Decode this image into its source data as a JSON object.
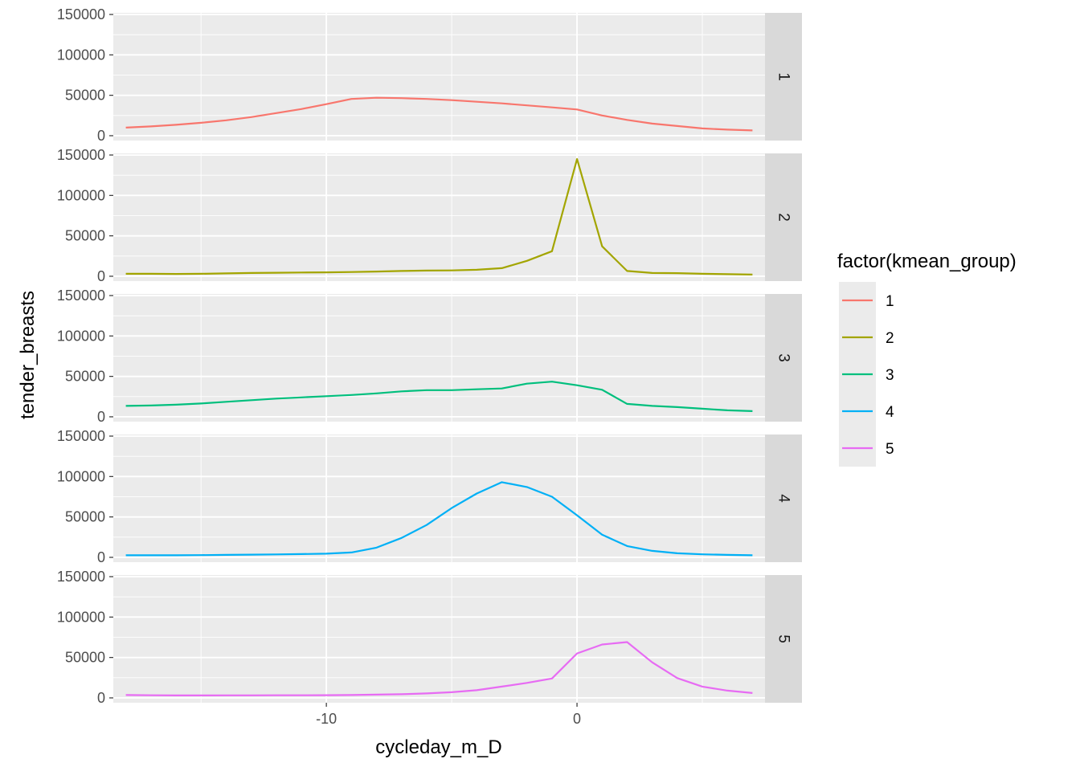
{
  "chart_data": {
    "type": "line",
    "facet": "rows",
    "xlabel": "cycleday_m_D",
    "ylabel": "tender_breasts",
    "xlim": [
      -18.5,
      7.5
    ],
    "ylim": [
      -6000,
      152000
    ],
    "x_ticks": [
      -10,
      0
    ],
    "x_tick_labels": [
      "-10",
      "0"
    ],
    "y_ticks": [
      0,
      50000,
      100000,
      150000
    ],
    "y_tick_labels": [
      "0",
      "50000",
      "100000",
      "150000"
    ],
    "grid": true,
    "legend": {
      "title": "factor(kmean_group)",
      "position": "right"
    },
    "x": [
      -18,
      -17,
      -16,
      -15,
      -14,
      -13,
      -12,
      -11,
      -10,
      -9,
      -8,
      -7,
      -6,
      -5,
      -4,
      -3,
      -2,
      -1,
      0,
      1,
      2,
      3,
      4,
      5,
      6,
      7
    ],
    "series": [
      {
        "name": "1",
        "strip": "1",
        "color": "#F8766D",
        "values": [
          10000,
          11500,
          13500,
          16000,
          19000,
          23000,
          28000,
          33000,
          39000,
          45500,
          47000,
          46500,
          45500,
          44000,
          42000,
          40000,
          37500,
          35000,
          32500,
          25000,
          19500,
          15000,
          12000,
          9000,
          7500,
          6500
        ]
      },
      {
        "name": "2",
        "strip": "2",
        "color": "#A3A500",
        "values": [
          3000,
          3000,
          2800,
          3000,
          3500,
          4000,
          4300,
          4600,
          4800,
          5200,
          5800,
          6500,
          7000,
          7200,
          8000,
          10000,
          19000,
          31000,
          145000,
          37000,
          6500,
          4000,
          3800,
          3000,
          2500,
          2000
        ]
      },
      {
        "name": "3",
        "strip": "3",
        "color": "#00BF7D",
        "values": [
          13500,
          14000,
          15000,
          16500,
          18500,
          20500,
          22500,
          24000,
          25500,
          27000,
          29000,
          31500,
          33000,
          33000,
          34000,
          35000,
          41000,
          43500,
          39000,
          33500,
          16000,
          13500,
          12000,
          10000,
          8000,
          7000
        ]
      },
      {
        "name": "4",
        "strip": "4",
        "color": "#00B0F6",
        "values": [
          2500,
          2500,
          2500,
          2700,
          3000,
          3300,
          3600,
          4000,
          4500,
          6000,
          12000,
          24000,
          40000,
          61000,
          79000,
          93000,
          87000,
          75000,
          52000,
          28000,
          14000,
          8000,
          5000,
          3700,
          3000,
          2500
        ]
      },
      {
        "name": "5",
        "strip": "5",
        "color": "#E76BF3",
        "values": [
          3500,
          3200,
          3000,
          3000,
          3100,
          3100,
          3200,
          3200,
          3300,
          3500,
          4000,
          4500,
          5500,
          7000,
          9500,
          14000,
          18500,
          24000,
          55000,
          66000,
          69000,
          44000,
          24500,
          14000,
          9000,
          6000
        ]
      }
    ]
  }
}
